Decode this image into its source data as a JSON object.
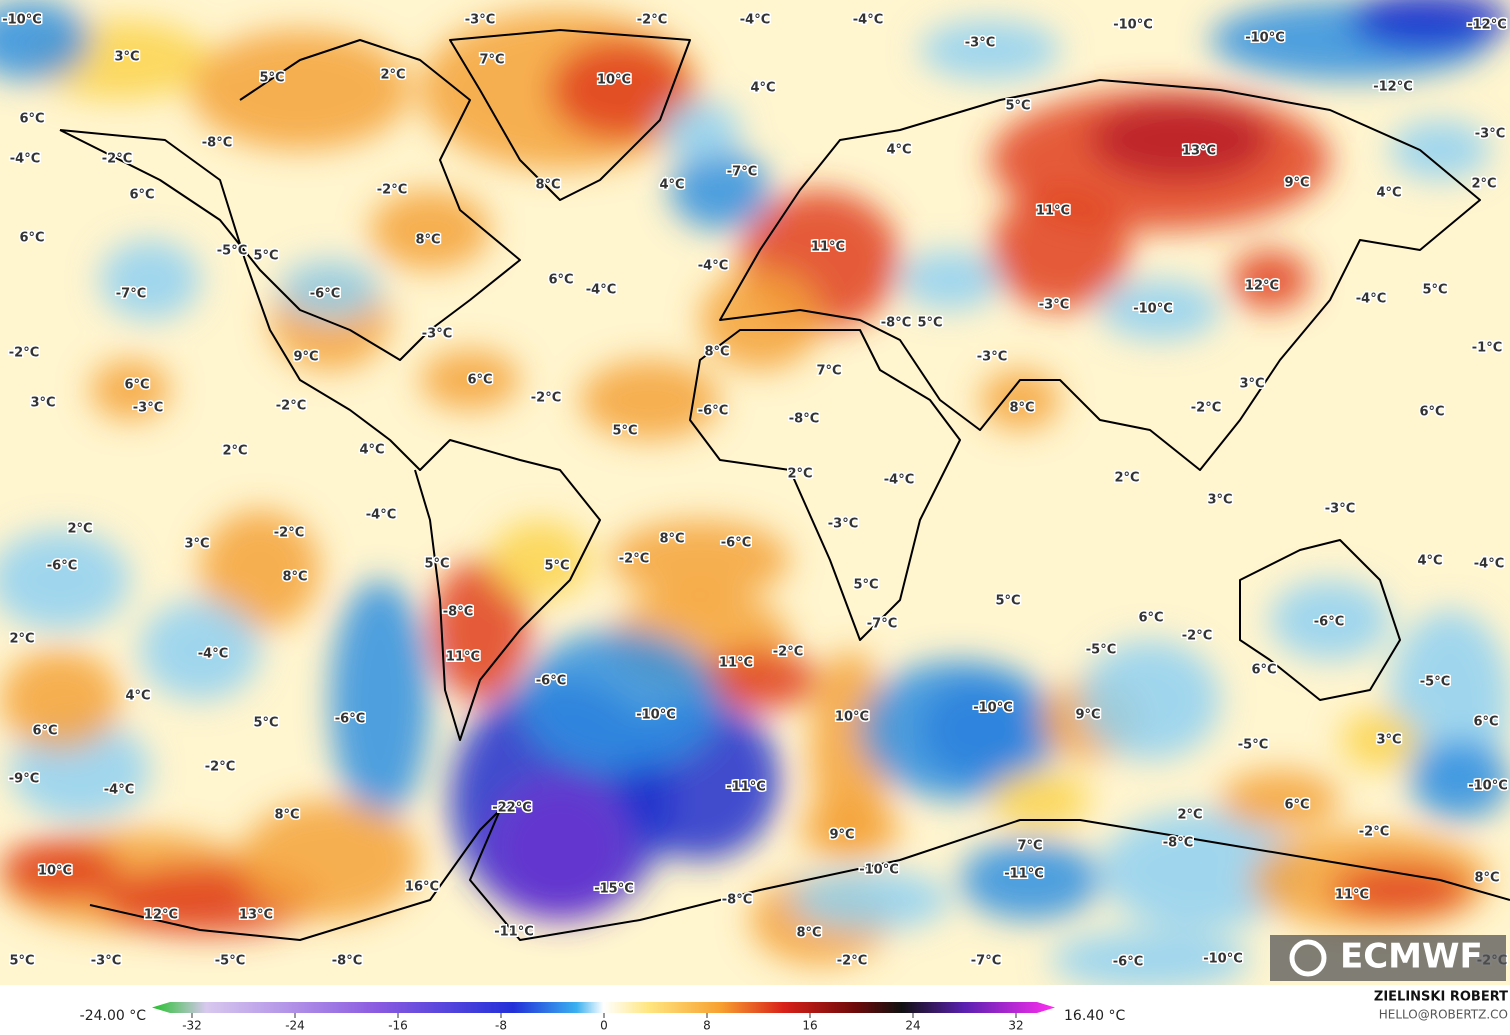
{
  "map": {
    "labels": [
      "-10°C",
      "-3°C",
      "-2°C",
      "-4°C",
      "-4°C",
      "-10°C",
      "-10°C",
      "-12°C",
      "-3°C",
      "3°C",
      "7°C",
      "5°C",
      "2°C",
      "10°C",
      "4°C",
      "5°C",
      "-12°C",
      "6°C",
      "-8°C",
      "-2°C",
      "-4°C",
      "-7°C",
      "4°C",
      "13°C",
      "-3°C",
      "6°C",
      "-2°C",
      "8°C",
      "4°C",
      "9°C",
      "4°C",
      "2°C",
      "6°C",
      "8°C",
      "11°C",
      "-5°C",
      "5°C",
      "11°C",
      "-4°C",
      "-7°C",
      "-6°C",
      "6°C",
      "-4°C",
      "12°C",
      "5°C",
      "-4°C",
      "-10°C",
      "-3°C",
      "-3°C",
      "-8°C",
      "5°C",
      "-2°C",
      "9°C",
      "8°C",
      "-3°C",
      "-1°C",
      "6°C",
      "7°C",
      "6°C",
      "3°C",
      "3°C",
      "-3°C",
      "-2°C",
      "-2°C",
      "-6°C",
      "-8°C",
      "8°C",
      "-2°C",
      "6°C",
      "2°C",
      "4°C",
      "5°C",
      "2°C",
      "-4°C",
      "2°C",
      "-4°C",
      "3°C",
      "-3°C",
      "2°C",
      "-2°C",
      "3°C",
      "-3°C",
      "8°C",
      "-6°C",
      "-2°C",
      "-6°C",
      "5°C",
      "5°C",
      "4°C",
      "-4°C",
      "8°C",
      "5°C",
      "5°C",
      "-8°C",
      "-7°C",
      "6°C",
      "-6°C",
      "-2°C",
      "2°C",
      "-4°C",
      "11°C",
      "-2°C",
      "-5°C",
      "11°C",
      "6°C",
      "-6°C",
      "4°C",
      "-5°C",
      "-10°C",
      "10°C",
      "-6°C",
      "5°C",
      "-10°C",
      "9°C",
      "6°C",
      "6°C",
      "3°C",
      "-5°C",
      "-2°C",
      "-9°C",
      "-4°C",
      "-11°C",
      "-10°C",
      "-22°C",
      "8°C",
      "2°C",
      "6°C",
      "9°C",
      "-2°C",
      "-8°C",
      "7°C",
      "10°C",
      "-10°C",
      "-11°C",
      "16°C",
      "-15°C",
      "11°C",
      "8°C",
      "12°C",
      "13°C",
      "-8°C",
      "-11°C",
      "8°C",
      "5°C",
      "-3°C",
      "-5°C",
      "-8°C",
      "-2°C",
      "-7°C",
      "-6°C",
      "-10°C",
      "-2°C"
    ]
  },
  "colorbar": {
    "min_label": "-24.00 °C",
    "max_label": "16.40 °C",
    "ticks": [
      -32,
      -24,
      -16,
      -8,
      0,
      8,
      16,
      24,
      32
    ]
  },
  "credits": {
    "author": "ZIELINSKI ROBERT",
    "email": "HELLO@ROBERTZ.CO",
    "logo": "ECMWF"
  }
}
